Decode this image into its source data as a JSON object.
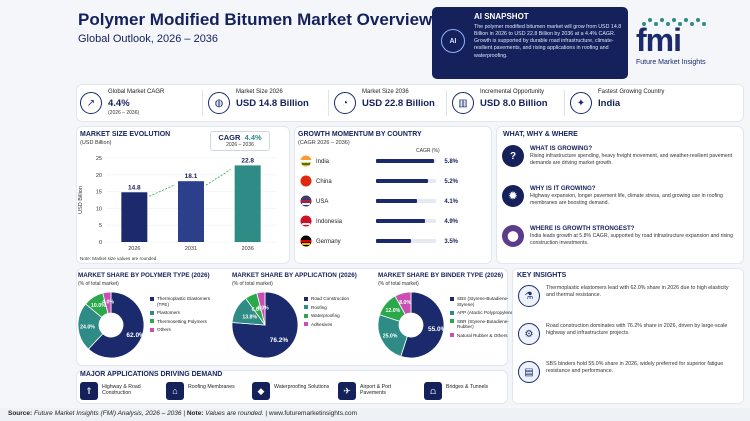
{
  "header": {
    "title": "Polymer Modified Bitumen Market Overview",
    "subtitle": "Global Outlook, 2026 – 2036"
  },
  "snapshot": {
    "title": "AI SNAPSHOT",
    "text": "The polymer modified bitumen market will grow from USD 14.8 Billion in 2026 to USD 22.8 Billion by 2036 at a 4.4% CAGR. Growth is supported by durable road infrastructure, climate-resilient pavements, and rising applications in roofing and waterproofing.",
    "icon": "ai-chip-icon"
  },
  "logo": {
    "mark": "fmi",
    "name": "Future Market Insights"
  },
  "kpis": [
    {
      "label": "Global Market CAGR",
      "value": "4.4%",
      "sub": "(2026 – 2036)",
      "icon": "trend-up-icon"
    },
    {
      "label": "Market Size 2026",
      "value": "USD 14.8 Billion",
      "sub": "",
      "icon": "globe-icon"
    },
    {
      "label": "Market Size 2036",
      "value": "USD 22.8 Billion",
      "sub": "",
      "icon": "pie-chart-icon"
    },
    {
      "label": "Incremental Opportunity",
      "value": "USD 8.0 Billion",
      "sub": "",
      "icon": "growth-chart-icon"
    },
    {
      "label": "Fastest Growing Country",
      "value": "India",
      "sub": "",
      "icon": "compass-icon"
    }
  ],
  "size_chart": {
    "title": "MARKET SIZE EVOLUTION",
    "subtitle": "(USD Billion)",
    "cagr_label": "CAGR",
    "cagr_value": "4.4%",
    "cagr_period": "2026 – 2036",
    "note": "Note: Market size values are rounded."
  },
  "growth_chart": {
    "title": "GROWTH MOMENTUM BY COUNTRY",
    "subtitle": "(CAGR 2026 – 2036)",
    "col_header": "CAGR (%)"
  },
  "why": {
    "title": "WHAT, WHY & WHERE",
    "items": [
      {
        "title": "WHAT IS GROWING?",
        "text": "Rising infrastructure spending, heavy freight movement, and weather-resilient pavement demands are driving market growth.",
        "icon": "question-icon"
      },
      {
        "title": "WHY IS IT GROWING?",
        "text": "Highway expansion, longer pavement life, climate stress, and growing use in roofing membranes are boosting demand.",
        "icon": "lightbulb-icon"
      },
      {
        "title": "WHERE IS GROWTH STRONGEST?",
        "text": "India leads growth at 5.8% CAGR, supported by road infrastructure expansion and rising construction investments.",
        "icon": "map-pin-icon"
      }
    ]
  },
  "pies_meta": [
    {
      "title": "MARKET SHARE BY POLYMER TYPE (2026)",
      "subtitle": "(% of total market)"
    },
    {
      "title": "MARKET SHARE BY APPLICATION (2026)",
      "subtitle": "(% of total market)"
    },
    {
      "title": "MARKET SHARE BY BINDER TYPE (2026)",
      "subtitle": "(% of total market)"
    }
  ],
  "insights": {
    "title": "KEY INSIGHTS",
    "items": [
      {
        "text": "Thermoplastic elastomers lead with 62.0% share in 2026 due to high elasticity and thermal resistance.",
        "icon": "flask-icon"
      },
      {
        "text": "Road construction dominates with 76.2% share in 2026, driven by large-scale highway and infrastructure projects.",
        "icon": "gear-icon"
      },
      {
        "text": "SBS binders hold 55.0% share in 2026, widely preferred for superior fatigue resistance and performance.",
        "icon": "barrel-icon"
      }
    ]
  },
  "applications": {
    "title": "MAJOR APPLICATIONS DRIVING DEMAND",
    "items": [
      {
        "label": "Highway & Road Construction",
        "icon": "road-icon"
      },
      {
        "label": "Roofing Membranes",
        "icon": "roof-icon"
      },
      {
        "label": "Waterproofing Solutions",
        "icon": "water-drop-icon"
      },
      {
        "label": "Airport & Port Pavements",
        "icon": "airplane-icon"
      },
      {
        "label": "Bridges & Tunnels",
        "icon": "bridge-icon"
      }
    ]
  },
  "footer": {
    "source_label": "Source:",
    "source_text": "Future Market Insights (FMI) Analysis, 2026 – 2036",
    "note_label": "Note:",
    "note_text": "Values are rounded.",
    "url": "www.futuremarketinsights.com"
  },
  "colors": {
    "navy": "#1a2a6c",
    "teal": "#2e8b85",
    "green": "#2ba84a",
    "pink": "#c94fb4"
  },
  "chart_data": [
    {
      "type": "bar",
      "categories": [
        "2026",
        "2031",
        "2036"
      ],
      "values": [
        14.8,
        18.1,
        22.8
      ],
      "ylabel": "USD Billion",
      "ylim": [
        0,
        25
      ],
      "yticks": [
        0,
        5,
        10,
        15,
        20,
        25
      ],
      "colors": [
        "#1a2a6c",
        "#2b3f8a",
        "#2e8b85"
      ]
    },
    {
      "type": "bar",
      "orientation": "horizontal",
      "categories": [
        "India",
        "China",
        "USA",
        "Indonesia",
        "Germany"
      ],
      "values": [
        5.8,
        5.2,
        4.1,
        4.9,
        3.5
      ],
      "value_labels": [
        "5.8%",
        "5.2%",
        "4.1%",
        "4.9%",
        "3.5%"
      ]
    },
    {
      "type": "pie",
      "labels": [
        "Thermoplastic Elastomers (TPE)",
        "Plastomers",
        "Thermosetting Polymers",
        "Others"
      ],
      "values": [
        62.0,
        24.0,
        10.0,
        4.0
      ],
      "value_labels": [
        "62.0%",
        "24.0%",
        "10.0%",
        "4.0%"
      ],
      "colors": [
        "#1a2a6c",
        "#2e8b85",
        "#2ba84a",
        "#c94fb4"
      ]
    },
    {
      "type": "pie",
      "labels": [
        "Road Construction",
        "Roofing",
        "Waterproofing",
        "Adhesives"
      ],
      "values": [
        76.2,
        13.8,
        6.0,
        4.0
      ],
      "value_labels": [
        "76.2%",
        "13.8%",
        "6.0%",
        "4.0%"
      ],
      "colors": [
        "#1a2a6c",
        "#2e8b85",
        "#2ba84a",
        "#c94fb4"
      ]
    },
    {
      "type": "pie",
      "labels": [
        "SBS (Styrene-Butadiene-Styrene)",
        "APP (Atactic Polypropylene)",
        "SBR (Styrene-Butadiene-Rubber)",
        "Natural Rubber & Others"
      ],
      "values": [
        55.0,
        25.0,
        12.0,
        8.0
      ],
      "value_labels": [
        "55.0%",
        "25.0%",
        "12.0%",
        "8.0%"
      ],
      "colors": [
        "#1a2a6c",
        "#2e8b85",
        "#2ba84a",
        "#c94fb4"
      ]
    }
  ]
}
